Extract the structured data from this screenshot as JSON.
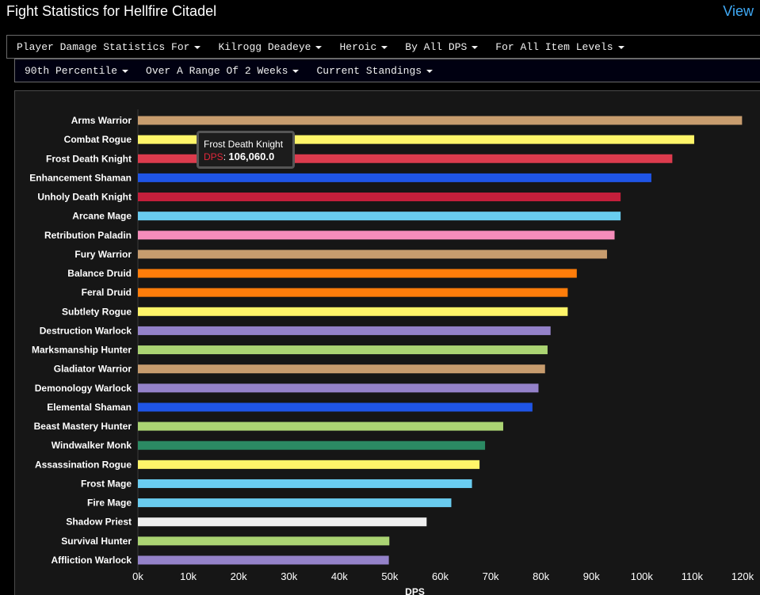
{
  "header": {
    "title": "Fight Statistics for Hellfire Citadel",
    "view_link": "View"
  },
  "filters_row1": [
    {
      "label": "Player Damage Statistics For"
    },
    {
      "label": "Kilrogg Deadeye"
    },
    {
      "label": "Heroic"
    },
    {
      "label": "By All DPS"
    },
    {
      "label": "For All Item Levels"
    }
  ],
  "filters_row2": [
    {
      "label": "90th Percentile"
    },
    {
      "label": "Over A Range Of 2 Weeks"
    },
    {
      "label": "Current Standings"
    }
  ],
  "tooltip": {
    "name": "Frost Death Knight",
    "metric": "DPS",
    "value": "106,060.0"
  },
  "chart_data": {
    "type": "bar",
    "orientation": "horizontal",
    "xlabel": "DPS",
    "xlim": [
      0,
      120000
    ],
    "xticks": [
      0,
      10000,
      20000,
      30000,
      40000,
      50000,
      60000,
      70000,
      80000,
      90000,
      100000,
      110000,
      120000
    ],
    "xtick_labels": [
      "0k",
      "10k",
      "20k",
      "30k",
      "40k",
      "50k",
      "60k",
      "70k",
      "80k",
      "90k",
      "100k",
      "110k",
      "120k"
    ],
    "grid": false,
    "categories": [
      "Arms Warrior",
      "Combat Rogue",
      "Frost Death Knight",
      "Enhancement Shaman",
      "Unholy Death Knight",
      "Arcane Mage",
      "Retribution Paladin",
      "Fury Warrior",
      "Balance Druid",
      "Feral Druid",
      "Subtlety Rogue",
      "Destruction Warlock",
      "Marksmanship Hunter",
      "Gladiator Warrior",
      "Demonology Warlock",
      "Elemental Shaman",
      "Beast Mastery Hunter",
      "Windwalker Monk",
      "Assassination Rogue",
      "Frost Mage",
      "Fire Mage",
      "Shadow Priest",
      "Survival Hunter",
      "Affliction Warlock"
    ],
    "values": [
      119900,
      110400,
      106060,
      101900,
      95800,
      95800,
      94600,
      93100,
      87100,
      85300,
      85300,
      81900,
      81300,
      80800,
      79500,
      78300,
      72500,
      68900,
      67800,
      66300,
      62200,
      57300,
      49900,
      49800
    ],
    "colors": [
      "#c79c6e",
      "#fff569",
      "#dc3b4d",
      "#1f55e6",
      "#c41f3b",
      "#69ccf0",
      "#f58cba",
      "#c79c6e",
      "#ff7d0a",
      "#ff7d0a",
      "#fff569",
      "#9482c9",
      "#abd473",
      "#c79c6e",
      "#9482c9",
      "#1f55e6",
      "#abd473",
      "#2b8a63",
      "#fff569",
      "#69ccf0",
      "#69ccf0",
      "#f0f0f0",
      "#abd473",
      "#9482c9"
    ]
  }
}
